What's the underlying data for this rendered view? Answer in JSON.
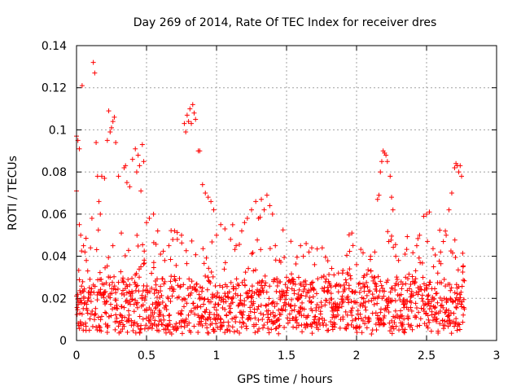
{
  "chart_data": {
    "type": "scatter",
    "title": "Day 269 of 2014, Rate Of TEC Index for receiver dres",
    "xlabel": "GPS time / hours",
    "ylabel": "ROTI / TECUs",
    "xlim": [
      0,
      3
    ],
    "ylim": [
      0,
      0.14
    ],
    "x_ticks": [
      0,
      0.5,
      1,
      1.5,
      2,
      2.5,
      3
    ],
    "x_tick_labels": [
      "0",
      "0.5",
      "1",
      "1.5",
      "2",
      "2.5",
      "3"
    ],
    "y_ticks": [
      0,
      0.02,
      0.04,
      0.06,
      0.08,
      0.1,
      0.12,
      0.14
    ],
    "y_tick_labels": [
      "0",
      "0.02",
      "0.04",
      "0.06",
      "0.08",
      "0.1",
      "0.12",
      "0.14"
    ],
    "grid": true,
    "marker": "+",
    "color": "#ff0000",
    "x_data_range": [
      0,
      2.77
    ],
    "series": [
      {
        "name": "ROTI",
        "points": [
          [
            0.0,
            0.071
          ],
          [
            0.0,
            0.097
          ],
          [
            0.01,
            0.095
          ],
          [
            0.02,
            0.091
          ],
          [
            0.02,
            0.055
          ],
          [
            0.03,
            0.05
          ],
          [
            0.04,
            0.121
          ],
          [
            0.05,
            0.045
          ],
          [
            0.06,
            0.042
          ],
          [
            0.07,
            0.038
          ],
          [
            0.08,
            0.033
          ],
          [
            0.1,
            0.044
          ],
          [
            0.11,
            0.058
          ],
          [
            0.12,
            0.132
          ],
          [
            0.13,
            0.127
          ],
          [
            0.14,
            0.094
          ],
          [
            0.15,
            0.078
          ],
          [
            0.16,
            0.066
          ],
          [
            0.17,
            0.06
          ],
          [
            0.18,
            0.078
          ],
          [
            0.2,
            0.077
          ],
          [
            0.22,
            0.095
          ],
          [
            0.23,
            0.109
          ],
          [
            0.24,
            0.099
          ],
          [
            0.25,
            0.101
          ],
          [
            0.26,
            0.104
          ],
          [
            0.27,
            0.106
          ],
          [
            0.28,
            0.094
          ],
          [
            0.3,
            0.078
          ],
          [
            0.32,
            0.051
          ],
          [
            0.34,
            0.082
          ],
          [
            0.35,
            0.083
          ],
          [
            0.36,
            0.075
          ],
          [
            0.38,
            0.073
          ],
          [
            0.4,
            0.086
          ],
          [
            0.42,
            0.091
          ],
          [
            0.43,
            0.08
          ],
          [
            0.44,
            0.088
          ],
          [
            0.45,
            0.083
          ],
          [
            0.46,
            0.071
          ],
          [
            0.47,
            0.093
          ],
          [
            0.48,
            0.085
          ],
          [
            0.5,
            0.056
          ],
          [
            0.52,
            0.058
          ],
          [
            0.55,
            0.06
          ],
          [
            0.58,
            0.052
          ],
          [
            0.6,
            0.041
          ],
          [
            0.63,
            0.038
          ],
          [
            0.66,
            0.045
          ],
          [
            0.7,
            0.052
          ],
          [
            0.72,
            0.048
          ],
          [
            0.75,
            0.05
          ],
          [
            0.77,
            0.103
          ],
          [
            0.78,
            0.099
          ],
          [
            0.79,
            0.107
          ],
          [
            0.8,
            0.104
          ],
          [
            0.81,
            0.11
          ],
          [
            0.82,
            0.103
          ],
          [
            0.83,
            0.112
          ],
          [
            0.84,
            0.108
          ],
          [
            0.85,
            0.105
          ],
          [
            0.87,
            0.09
          ],
          [
            0.88,
            0.09
          ],
          [
            0.9,
            0.074
          ],
          [
            0.92,
            0.07
          ],
          [
            0.94,
            0.068
          ],
          [
            0.96,
            0.066
          ],
          [
            0.98,
            0.062
          ],
          [
            1.0,
            0.05
          ],
          [
            1.03,
            0.055
          ],
          [
            1.06,
            0.053
          ],
          [
            1.1,
            0.048
          ],
          [
            1.14,
            0.045
          ],
          [
            1.18,
            0.052
          ],
          [
            1.2,
            0.056
          ],
          [
            1.22,
            0.058
          ],
          [
            1.25,
            0.062
          ],
          [
            1.28,
            0.066
          ],
          [
            1.3,
            0.058
          ],
          [
            1.32,
            0.067
          ],
          [
            1.34,
            0.062
          ],
          [
            1.36,
            0.069
          ],
          [
            1.38,
            0.064
          ],
          [
            1.4,
            0.06
          ],
          [
            1.42,
            0.045
          ],
          [
            1.45,
            0.038
          ],
          [
            1.5,
            0.03
          ],
          [
            1.55,
            0.028
          ],
          [
            1.6,
            0.045
          ],
          [
            1.62,
            0.04
          ],
          [
            1.64,
            0.046
          ],
          [
            1.66,
            0.042
          ],
          [
            1.68,
            0.044
          ],
          [
            1.7,
            0.036
          ],
          [
            1.75,
            0.03
          ],
          [
            1.8,
            0.028
          ],
          [
            1.85,
            0.026
          ],
          [
            1.9,
            0.032
          ],
          [
            1.95,
            0.034
          ],
          [
            2.0,
            0.036
          ],
          [
            2.05,
            0.03
          ],
          [
            2.1,
            0.04
          ],
          [
            2.13,
            0.042
          ],
          [
            2.15,
            0.067
          ],
          [
            2.16,
            0.069
          ],
          [
            2.17,
            0.08
          ],
          [
            2.18,
            0.085
          ],
          [
            2.19,
            0.09
          ],
          [
            2.2,
            0.089
          ],
          [
            2.21,
            0.088
          ],
          [
            2.22,
            0.085
          ],
          [
            2.23,
            0.047
          ],
          [
            2.24,
            0.078
          ],
          [
            2.25,
            0.068
          ],
          [
            2.26,
            0.062
          ],
          [
            2.28,
            0.04
          ],
          [
            2.3,
            0.038
          ],
          [
            2.35,
            0.03
          ],
          [
            2.4,
            0.028
          ],
          [
            2.43,
            0.045
          ],
          [
            2.45,
            0.05
          ],
          [
            2.48,
            0.059
          ],
          [
            2.5,
            0.06
          ],
          [
            2.52,
            0.061
          ],
          [
            2.55,
            0.035
          ],
          [
            2.58,
            0.032
          ],
          [
            2.6,
            0.042
          ],
          [
            2.62,
            0.047
          ],
          [
            2.64,
            0.05
          ],
          [
            2.66,
            0.062
          ],
          [
            2.68,
            0.07
          ],
          [
            2.7,
            0.082
          ],
          [
            2.71,
            0.084
          ],
          [
            2.72,
            0.083
          ],
          [
            2.73,
            0.08
          ],
          [
            2.74,
            0.083
          ],
          [
            2.75,
            0.078
          ],
          [
            2.76,
            0.035
          ],
          [
            2.77,
            0.015
          ]
        ],
        "dense_band": {
          "description": "Dense cloud of points sampled every ~0.004 h across the full time range",
          "x_range": [
            0,
            2.77
          ],
          "y_range": [
            0.005,
            0.035
          ],
          "typical_value": 0.016
        }
      }
    ]
  }
}
